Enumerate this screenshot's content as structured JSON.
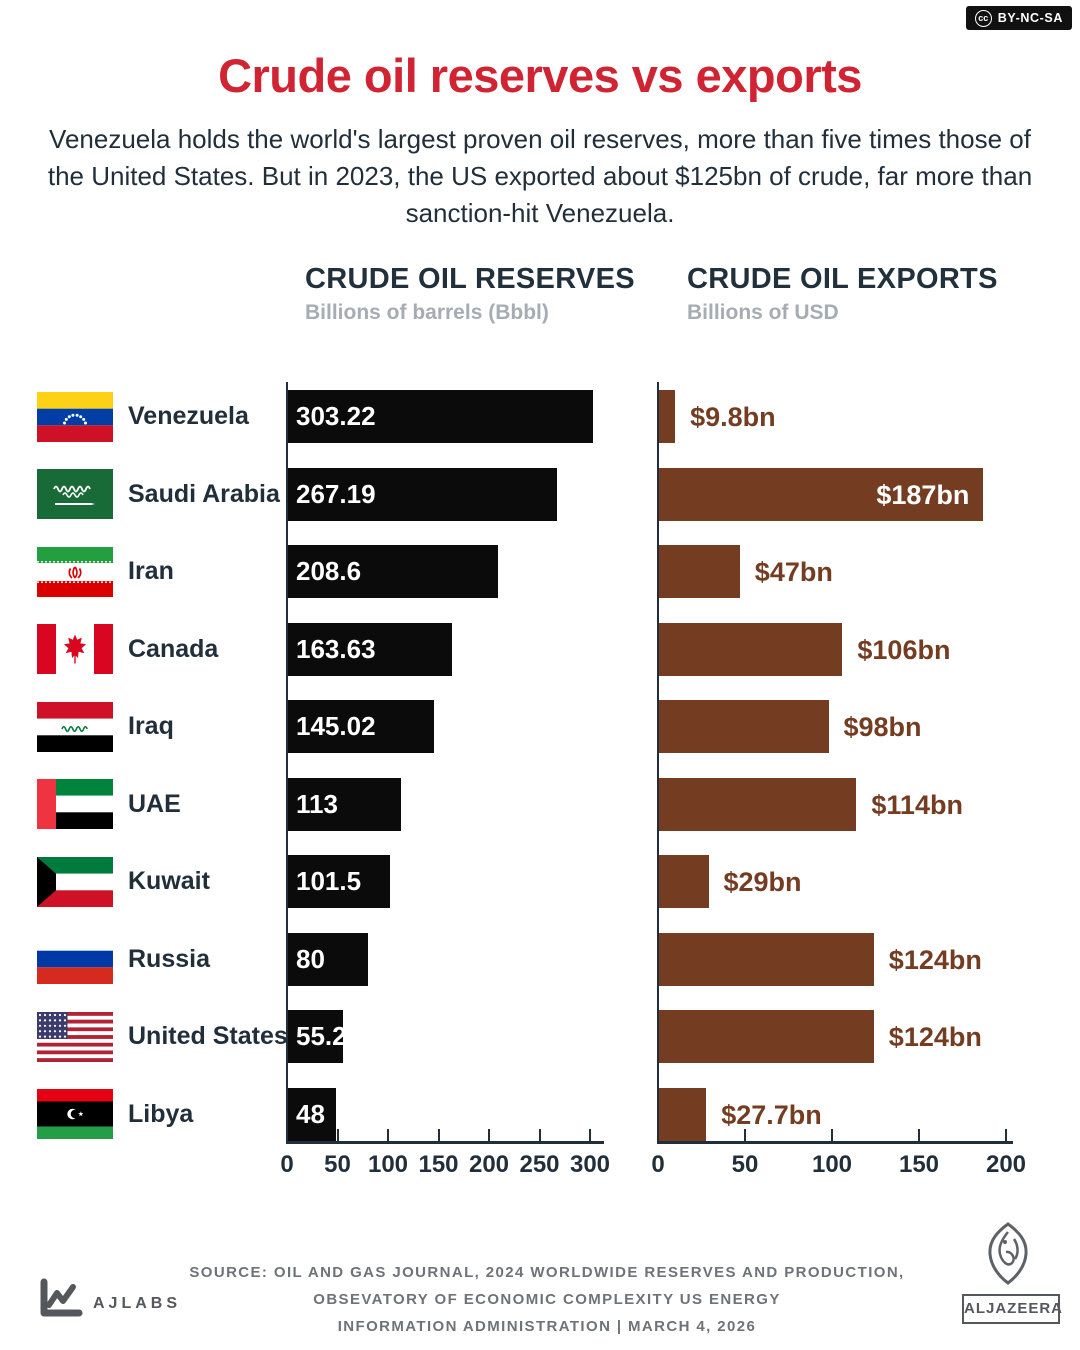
{
  "license_badge": {
    "icon_text": "cc",
    "label": "BY-NC-SA"
  },
  "title": "Crude oil reserves vs exports",
  "subtitle": "Venezuela holds the world's largest proven oil reserves, more than five times those of the United States. But in 2023, the US exported about $125bn of crude, far more than sanction-hit Venezuela.",
  "reserves_chart": {
    "title": "CRUDE OIL RESERVES",
    "subtitle": "Billions of barrels (Bbbl)",
    "x_ticks": [
      0,
      50,
      100,
      150,
      200,
      250,
      300
    ],
    "x_max": 300
  },
  "exports_chart": {
    "title": "CRUDE OIL EXPORTS",
    "subtitle": "Billions of USD",
    "x_ticks": [
      0,
      50,
      100,
      150,
      200
    ],
    "x_max": 200
  },
  "rows": [
    {
      "id": "venezuela",
      "country": "Venezuela",
      "flag": "flag-venezuela-icon",
      "reserves": 303.22,
      "reserves_label": "303.22",
      "exports": 9.8,
      "exports_label": "$9.8bn",
      "exports_label_inside": false
    },
    {
      "id": "saudi-arabia",
      "country": "Saudi Arabia",
      "flag": "flag-saudi-arabia-icon",
      "reserves": 267.19,
      "reserves_label": "267.19",
      "exports": 187,
      "exports_label": "$187bn",
      "exports_label_inside": true
    },
    {
      "id": "iran",
      "country": "Iran",
      "flag": "flag-iran-icon",
      "reserves": 208.6,
      "reserves_label": "208.6",
      "exports": 47,
      "exports_label": "$47bn",
      "exports_label_inside": false
    },
    {
      "id": "canada",
      "country": "Canada",
      "flag": "flag-canada-icon",
      "reserves": 163.63,
      "reserves_label": "163.63",
      "exports": 106,
      "exports_label": "$106bn",
      "exports_label_inside": false
    },
    {
      "id": "iraq",
      "country": "Iraq",
      "flag": "flag-iraq-icon",
      "reserves": 145.02,
      "reserves_label": "145.02",
      "exports": 98,
      "exports_label": "$98bn",
      "exports_label_inside": false
    },
    {
      "id": "uae",
      "country": "UAE",
      "flag": "flag-uae-icon",
      "reserves": 113,
      "reserves_label": "113",
      "exports": 114,
      "exports_label": "$114bn",
      "exports_label_inside": false
    },
    {
      "id": "kuwait",
      "country": "Kuwait",
      "flag": "flag-kuwait-icon",
      "reserves": 101.5,
      "reserves_label": "101.5",
      "exports": 29,
      "exports_label": "$29bn",
      "exports_label_inside": false
    },
    {
      "id": "russia",
      "country": "Russia",
      "flag": "flag-russia-icon",
      "reserves": 80,
      "reserves_label": "80",
      "exports": 124,
      "exports_label": "$124bn",
      "exports_label_inside": false
    },
    {
      "id": "united-states",
      "country": "United States",
      "flag": "flag-united-states-icon",
      "reserves": 55.2,
      "reserves_label": "55.2",
      "exports": 124,
      "exports_label": "$124bn",
      "exports_label_inside": false
    },
    {
      "id": "libya",
      "country": "Libya",
      "flag": "flag-libya-icon",
      "reserves": 48,
      "reserves_label": "48",
      "exports": 27.7,
      "exports_label": "$27.7bn",
      "exports_label_inside": false
    }
  ],
  "colors": {
    "title_red": "#d02433",
    "bar_black": "#0b0b0b",
    "bar_brown": "#743d22",
    "navy": "#222f3a",
    "muted_gray": "#a6acb2",
    "footer_gray": "#6e7378"
  },
  "footer": {
    "source_lines": [
      "SOURCE:  OIL AND GAS JOURNAL, 2024 WORLDWIDE RESERVES AND PRODUCTION,",
      "OBSEVATORY OF ECONOMIC COMPLEXITY US ENERGY",
      "INFORMATION ADMINISTRATION   |   MARCH 4, 2026"
    ],
    "ajlabs_label": "AJLABS",
    "aljazeera_label": "ALJAZEERA"
  },
  "chart_data": [
    {
      "type": "bar",
      "orientation": "horizontal",
      "title": "CRUDE OIL RESERVES",
      "subtitle": "Billions of barrels (Bbbl)",
      "categories": [
        "Venezuela",
        "Saudi Arabia",
        "Iran",
        "Canada",
        "Iraq",
        "UAE",
        "Kuwait",
        "Russia",
        "United States",
        "Libya"
      ],
      "values": [
        303.22,
        267.19,
        208.6,
        163.63,
        145.02,
        113,
        101.5,
        80,
        55.2,
        48
      ],
      "value_labels": [
        "303.22",
        "267.19",
        "208.6",
        "163.63",
        "145.02",
        "113",
        "101.5",
        "80",
        "55.2",
        "48"
      ],
      "bar_color": "#0b0b0b",
      "xlim": [
        0,
        300
      ],
      "x_ticks": [
        0,
        50,
        100,
        150,
        200,
        250,
        300
      ],
      "grid": false,
      "legend": false
    },
    {
      "type": "bar",
      "orientation": "horizontal",
      "title": "CRUDE OIL EXPORTS",
      "subtitle": "Billions of USD",
      "categories": [
        "Venezuela",
        "Saudi Arabia",
        "Iran",
        "Canada",
        "Iraq",
        "UAE",
        "Kuwait",
        "Russia",
        "United States",
        "Libya"
      ],
      "values": [
        9.8,
        187,
        47,
        106,
        98,
        114,
        29,
        124,
        124,
        27.7
      ],
      "value_labels": [
        "$9.8bn",
        "$187bn",
        "$47bn",
        "$106bn",
        "$98bn",
        "$114bn",
        "$29bn",
        "$124bn",
        "$124bn",
        "$27.7bn"
      ],
      "bar_color": "#743d22",
      "xlim": [
        0,
        200
      ],
      "x_ticks": [
        0,
        50,
        100,
        150,
        200
      ],
      "grid": false,
      "legend": false
    }
  ]
}
